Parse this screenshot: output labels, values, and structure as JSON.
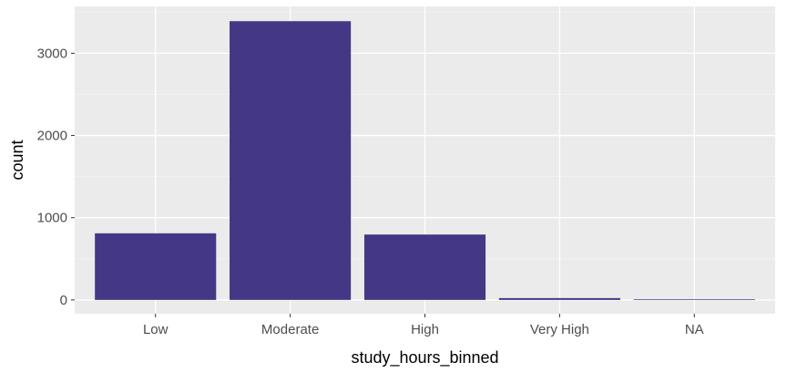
{
  "chart_data": {
    "type": "bar",
    "categories": [
      "Low",
      "Moderate",
      "High",
      "Very High",
      "NA"
    ],
    "values": [
      810,
      3390,
      795,
      22,
      8
    ],
    "xlabel": "study_hours_binned",
    "ylabel": "count",
    "ylim": [
      -168,
      3570
    ],
    "yticks": [
      0,
      1000,
      2000,
      3000
    ],
    "yticklabels": [
      "0",
      "1000",
      "2000",
      "3000"
    ],
    "grid": true,
    "colors": {
      "bar": "#443785",
      "panel": "#ebebeb",
      "grid_major": "#ffffff",
      "grid_minor": "#f4f4f4",
      "tick_text": "#4d4d4d",
      "tick_mark": "#333333"
    }
  }
}
